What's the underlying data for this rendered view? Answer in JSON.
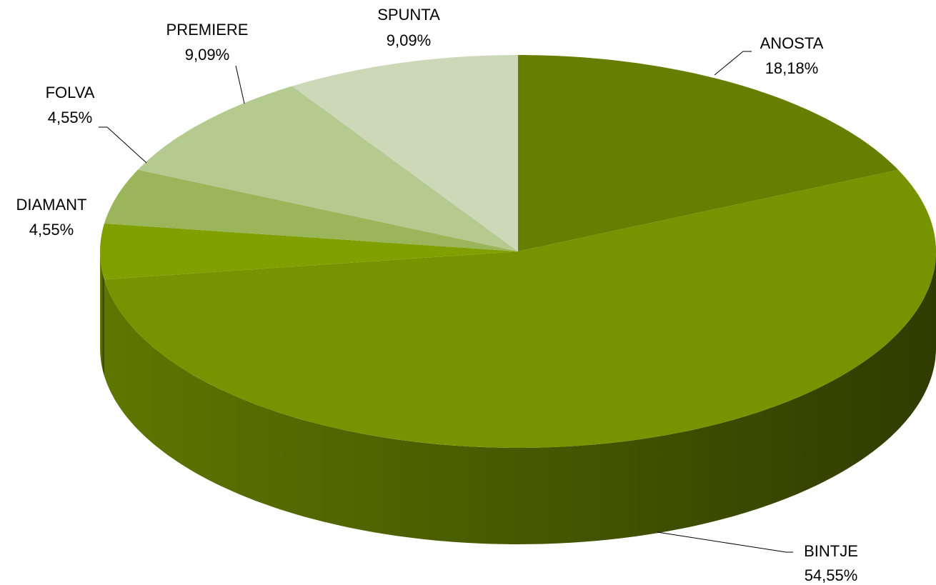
{
  "chart_data": {
    "type": "pie",
    "categories": [
      "ANOSTA",
      "BINTJE",
      "DIAMANT",
      "FOLVA",
      "PREMIERE",
      "SPUNTA"
    ],
    "values": [
      18.18,
      54.55,
      4.55,
      4.55,
      9.09,
      9.09
    ],
    "value_labels": [
      "18,18%",
      "54,55%",
      "4,55%",
      "4,55%",
      "9,09%",
      "9,09%"
    ],
    "colors": [
      "#667f00",
      "#779400",
      "#80a000",
      "#9bb55a",
      "#b5ca8f",
      "#ccd8b8"
    ]
  }
}
